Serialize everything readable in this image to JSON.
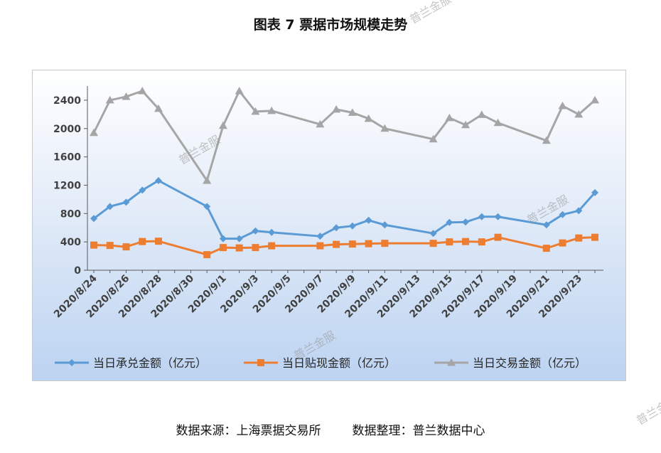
{
  "title": "图表 7  票据市场规模走势",
  "source": {
    "left": "数据来源：上海票据交易所",
    "right": "数据整理：普兰数据中心"
  },
  "watermarks": [
    "普兰金服",
    "普兰金服",
    "普兰金服",
    "普兰金服",
    "普兰金服"
  ],
  "colors": {
    "acceptance": "#5b9bd5",
    "discount": "#ed7d31",
    "trading": "#a5a5a5"
  },
  "chart_data": {
    "type": "line",
    "title": "图表 7  票据市场规模走势",
    "x": [
      "2020/8/24",
      "2020/8/25",
      "2020/8/26",
      "2020/8/27",
      "2020/8/28",
      "2020/8/31",
      "2020/9/1",
      "2020/9/2",
      "2020/9/3",
      "2020/9/4",
      "2020/9/7",
      "2020/9/8",
      "2020/9/9",
      "2020/9/10",
      "2020/9/11",
      "2020/9/14",
      "2020/9/15",
      "2020/9/16",
      "2020/9/17",
      "2020/9/18",
      "2020/9/21",
      "2020/9/22",
      "2020/9/23",
      "2020/9/24"
    ],
    "tick_labels": [
      "2020/8/24",
      "2020/8/26",
      "2020/8/28",
      "2020/8/30",
      "2020/9/1",
      "2020/9/3",
      "2020/9/5",
      "2020/9/7",
      "2020/9/9",
      "2020/9/11",
      "2020/9/13",
      "2020/9/15",
      "2020/9/17",
      "2020/9/19",
      "2020/9/21",
      "2020/9/23"
    ],
    "x_range": [
      "2020/8/24",
      "2020/9/24"
    ],
    "ylim": [
      0,
      2600
    ],
    "y_ticks": [
      0,
      400,
      800,
      1200,
      1600,
      2000,
      2400
    ],
    "grid": false,
    "legend_position": "bottom",
    "series": [
      {
        "name": "当日承兑金额（亿元）",
        "marker": "diamond",
        "values": [
          730,
          900,
          960,
          1130,
          1265,
          900,
          445,
          445,
          555,
          535,
          480,
          600,
          625,
          705,
          640,
          520,
          675,
          680,
          755,
          755,
          640,
          785,
          840,
          1095
        ]
      },
      {
        "name": "当日贴现金额（亿元）",
        "marker": "square",
        "values": [
          355,
          350,
          330,
          405,
          410,
          220,
          320,
          315,
          320,
          345,
          345,
          365,
          370,
          375,
          380,
          380,
          400,
          405,
          400,
          465,
          310,
          385,
          455,
          465
        ]
      },
      {
        "name": "当日交易金额（亿元）",
        "marker": "triangle",
        "values": [
          1940,
          2400,
          2450,
          2530,
          2280,
          1265,
          2040,
          2530,
          2240,
          2250,
          2060,
          2270,
          2225,
          2140,
          2000,
          1850,
          2150,
          2050,
          2195,
          2080,
          1830,
          2320,
          2200,
          2400
        ]
      }
    ]
  }
}
